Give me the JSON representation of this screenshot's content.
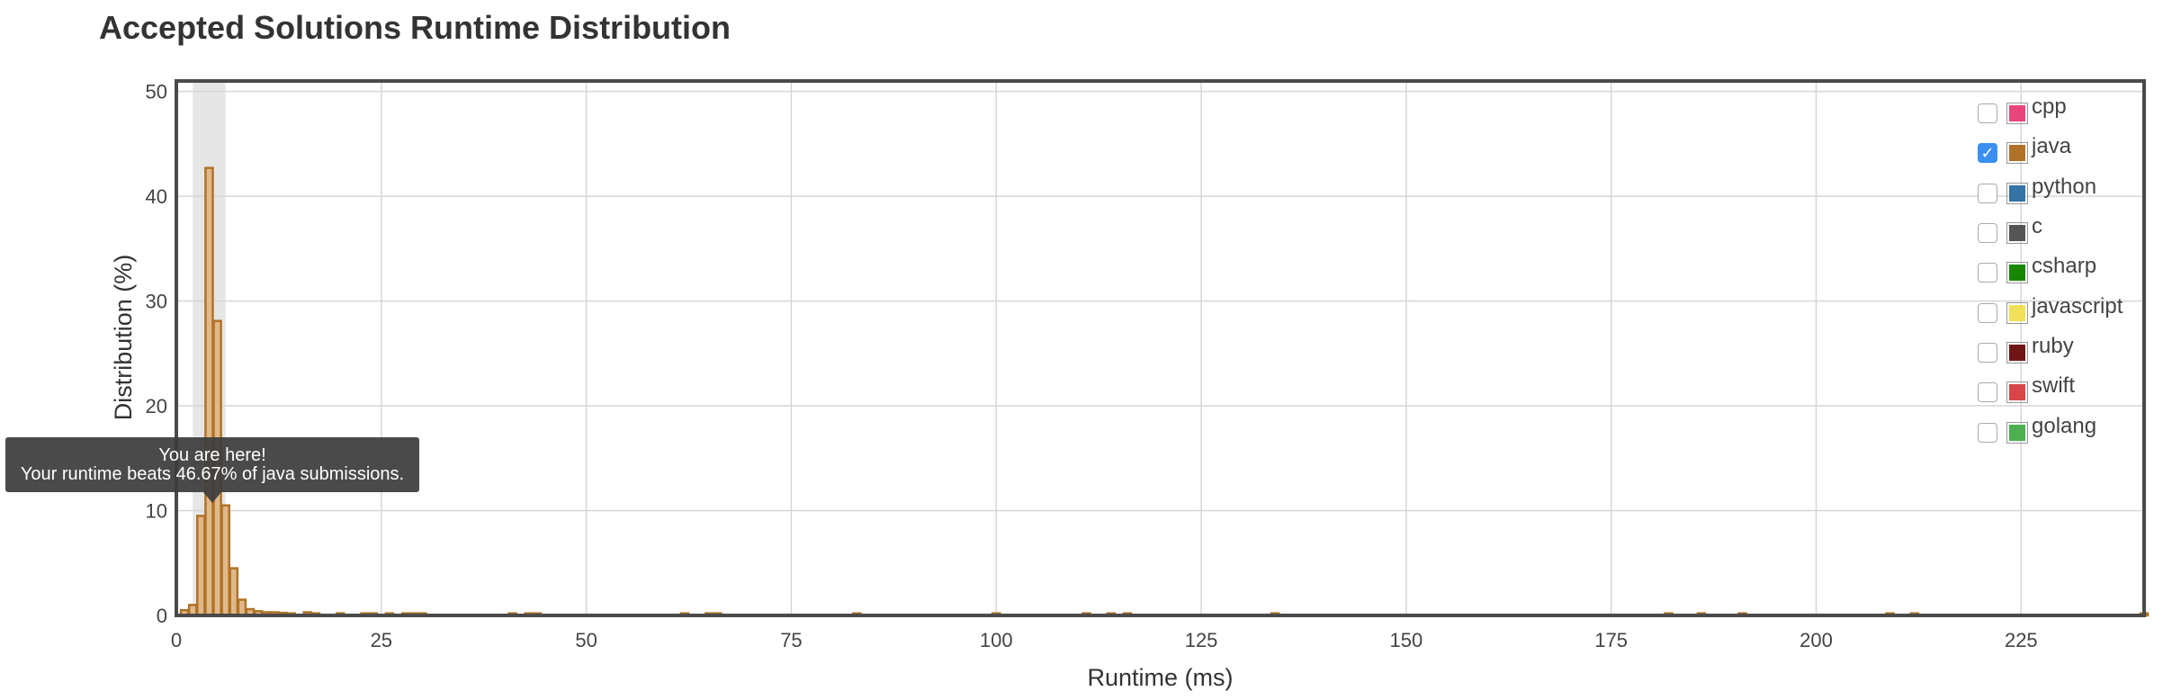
{
  "page": {
    "title": "Accepted Solutions Runtime Distribution"
  },
  "chart_data": {
    "type": "bar",
    "xlabel": "Runtime (ms)",
    "ylabel": "Distribution (%)",
    "xlim": [
      0,
      240
    ],
    "ylim": [
      0,
      51
    ],
    "x_ticks": [
      0,
      25,
      50,
      75,
      100,
      125,
      150,
      175,
      200,
      225
    ],
    "y_ticks": [
      0,
      10,
      20,
      30,
      40,
      50
    ],
    "grid": true,
    "bin_width_ms": 1,
    "highlight_range_ms": [
      2,
      6
    ],
    "series": [
      {
        "name": "java",
        "color": "#b07228",
        "x": [
          1,
          2,
          3,
          4,
          5,
          6,
          7,
          8,
          9,
          10,
          11,
          12,
          13,
          14,
          16,
          17,
          20,
          23,
          24,
          26,
          28,
          29,
          30,
          41,
          43,
          44,
          62,
          65,
          66,
          83,
          100,
          111,
          114,
          116,
          134,
          182,
          186,
          191,
          209,
          212,
          240
        ],
        "values": [
          0.5,
          1.0,
          9.5,
          42.7,
          28.1,
          10.5,
          4.5,
          1.5,
          0.6,
          0.4,
          0.3,
          0.3,
          0.25,
          0.2,
          0.3,
          0.2,
          0.2,
          0.2,
          0.2,
          0.2,
          0.2,
          0.2,
          0.2,
          0.2,
          0.2,
          0.2,
          0.2,
          0.2,
          0.2,
          0.2,
          0.2,
          0.2,
          0.2,
          0.2,
          0.2,
          0.2,
          0.2,
          0.2,
          0.2,
          0.2,
          0.2
        ]
      }
    ]
  },
  "legend": {
    "items": [
      {
        "label": "cpp",
        "color": "#e8467c",
        "checked": false
      },
      {
        "label": "java",
        "color": "#b07228",
        "checked": true
      },
      {
        "label": "python",
        "color": "#3572a5",
        "checked": false
      },
      {
        "label": "c",
        "color": "#555555",
        "checked": false
      },
      {
        "label": "csharp",
        "color": "#178600",
        "checked": false
      },
      {
        "label": "javascript",
        "color": "#f1e05a",
        "checked": false
      },
      {
        "label": "ruby",
        "color": "#701516",
        "checked": false
      },
      {
        "label": "swift",
        "color": "#d9464a",
        "checked": false
      },
      {
        "label": "golang",
        "color": "#4caf50",
        "checked": false
      }
    ]
  },
  "tooltip": {
    "line1": "You are here!",
    "line2": "Your runtime beats 46.67% of java submissions."
  }
}
